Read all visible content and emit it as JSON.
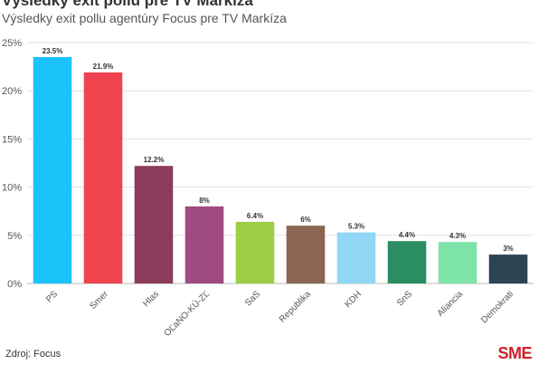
{
  "header": {
    "title": "Výsledky exit pollu pre TV Markíza",
    "subtitle": "Výsledky exit pollu agentúry Focus pre TV Markíza"
  },
  "footer": {
    "source": "Zdroj: Focus",
    "logo": "SME"
  },
  "chart_data": {
    "type": "bar",
    "categories": [
      "PS",
      "Smer",
      "Hlas",
      "OĽaNO-KÚ-ZĽ",
      "SaS",
      "Republika",
      "KDH",
      "SnS",
      "Aliancia",
      "Demokrati"
    ],
    "values": [
      23.5,
      21.9,
      12.2,
      8,
      6.4,
      6,
      5.3,
      4.4,
      4.3,
      3
    ],
    "value_labels": [
      "23.5%",
      "21.9%",
      "12.2%",
      "8%",
      "6.4%",
      "6%",
      "5.3%",
      "4.4%",
      "4.3%",
      "3%"
    ],
    "colors": [
      "#1cc2fa",
      "#ef434f",
      "#8c3b5c",
      "#a04a82",
      "#9ccf45",
      "#8c6552",
      "#92d7f5",
      "#2b8e63",
      "#7de3a9",
      "#2c4552"
    ],
    "ylim": [
      0,
      25
    ],
    "yticks": [
      0,
      5,
      10,
      15,
      20,
      25
    ],
    "ytick_labels": [
      "0%",
      "5%",
      "10%",
      "15%",
      "20%",
      "25%"
    ],
    "grid": true,
    "legend": "none"
  }
}
